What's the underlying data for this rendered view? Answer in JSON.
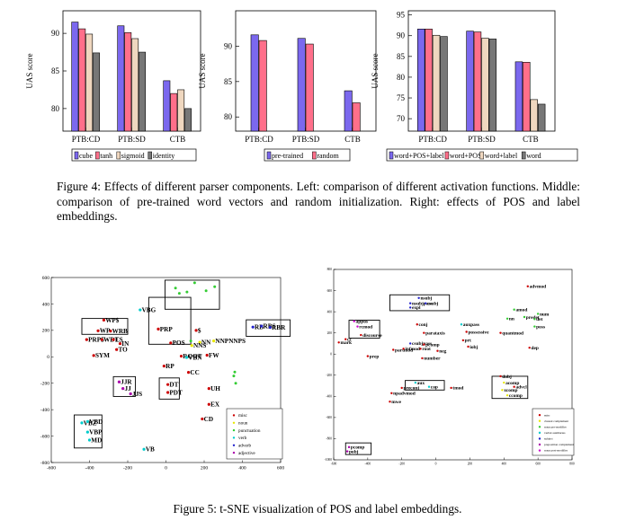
{
  "figure4": {
    "caption": "Figure 4: Effects of different parser components. Left: comparison of different activation functions. Middle: comparison of pre-trained word vectors and random initialization. Right: effects of POS and label embeddings.",
    "ylabel": "UAS score"
  },
  "figure5": {
    "caption": "Figure 5: t-SNE visualization of POS and label embeddings."
  },
  "chart_data": [
    {
      "type": "bar",
      "categories": [
        "PTB:CD",
        "PTB:SD",
        "CTB"
      ],
      "ylabel": "UAS score",
      "ylim": [
        77,
        93
      ],
      "yticks": [
        80,
        85,
        90
      ],
      "legend_placement": "bottom",
      "series": [
        {
          "name": "cube",
          "color": "#7b68ee",
          "values": [
            91.5,
            91.0,
            83.7
          ]
        },
        {
          "name": "tanh",
          "color": "#ff6f8a",
          "values": [
            90.6,
            90.1,
            82.0
          ]
        },
        {
          "name": "sigmoid",
          "color": "#efd7bf",
          "values": [
            89.9,
            89.3,
            82.5
          ]
        },
        {
          "name": "identity",
          "color": "#777777",
          "values": [
            87.4,
            87.5,
            80.0
          ]
        }
      ]
    },
    {
      "type": "bar",
      "categories": [
        "PTB:CD",
        "PTB:SD",
        "CTB"
      ],
      "ylabel": "UAS score",
      "ylim": [
        78,
        95
      ],
      "yticks": [
        80,
        85,
        90
      ],
      "legend_placement": "bottom",
      "series": [
        {
          "name": "pre-trained",
          "color": "#7b68ee",
          "values": [
            91.6,
            91.1,
            83.7
          ]
        },
        {
          "name": "random",
          "color": "#ff6f8a",
          "values": [
            90.8,
            90.3,
            82.0
          ]
        }
      ]
    },
    {
      "type": "bar",
      "categories": [
        "PTB:CD",
        "PTB:SD",
        "CTB"
      ],
      "ylabel": "UAS score",
      "ylim": [
        67,
        96
      ],
      "yticks": [
        70,
        75,
        80,
        85,
        90,
        95
      ],
      "legend_placement": "bottom",
      "series": [
        {
          "name": "word+POS+label",
          "color": "#7b68ee",
          "values": [
            91.6,
            91.1,
            83.7
          ]
        },
        {
          "name": "word+POS",
          "color": "#ff6f8a",
          "values": [
            91.6,
            90.9,
            83.6
          ]
        },
        {
          "name": "word+label",
          "color": "#efd7bf",
          "values": [
            90.1,
            89.4,
            74.6
          ]
        },
        {
          "name": "word",
          "color": "#777777",
          "values": [
            89.8,
            89.2,
            73.5
          ]
        }
      ]
    },
    {
      "type": "scatter",
      "xlim": [
        -600,
        600
      ],
      "ylim": [
        -800,
        600
      ],
      "xticks": [
        -600,
        -400,
        -200,
        0,
        200,
        400,
        600
      ],
      "yticks": [
        -800,
        -600,
        -400,
        -200,
        0,
        200,
        400,
        600
      ],
      "legend_placement": "bottom-right",
      "legend": [
        {
          "name": "misc",
          "color": "#cc0000"
        },
        {
          "name": "noun",
          "color": "#e8e800"
        },
        {
          "name": "punctuation",
          "color": "#33cc33"
        },
        {
          "name": "verb",
          "color": "#00cccc"
        },
        {
          "name": "adverb",
          "color": "#2222cc"
        },
        {
          "name": "adjective",
          "color": "#aa00aa"
        }
      ],
      "points": [
        {
          "label": "VBG",
          "x": -135,
          "y": 355,
          "color": "#00cccc"
        },
        {
          "label": "WP$",
          "x": -325,
          "y": 278,
          "color": "#cc0000"
        },
        {
          "label": "WRB",
          "x": -290,
          "y": 195,
          "color": "#cc0000"
        },
        {
          "label": "WP",
          "x": -355,
          "y": 197,
          "color": "#cc0000"
        },
        {
          "label": "PRP$",
          "x": -415,
          "y": 130,
          "color": "#cc0000"
        },
        {
          "label": "WDT",
          "x": -335,
          "y": 130,
          "color": "#cc0000"
        },
        {
          "label": "LS",
          "x": -275,
          "y": 130,
          "color": "#cc0000"
        },
        {
          "label": "IN",
          "x": -240,
          "y": 100,
          "color": "#cc0000"
        },
        {
          "label": "TO",
          "x": -258,
          "y": 55,
          "color": "#cc0000"
        },
        {
          "label": "SYM",
          "x": -378,
          "y": 10,
          "color": "#cc0000"
        },
        {
          "label": "PRP",
          "x": -40,
          "y": 210,
          "color": "#cc0000"
        },
        {
          "label": "POS",
          "x": 25,
          "y": 105,
          "color": "#cc0000"
        },
        {
          "label": "$",
          "x": 158,
          "y": 200,
          "color": "#cc0000"
        },
        {
          "label": "NN",
          "x": 177,
          "y": 110,
          "color": "#e8e800"
        },
        {
          "label": "NNS",
          "x": 135,
          "y": 85,
          "color": "#e8e800"
        },
        {
          "label": "NNPNNPS",
          "x": 250,
          "y": 120,
          "color": "#e8e800"
        },
        {
          "label": "RB",
          "x": 455,
          "y": 225,
          "color": "#2222cc"
        },
        {
          "label": "RBS",
          "x": 500,
          "y": 232,
          "color": "#2222cc"
        },
        {
          "label": "RBR",
          "x": 545,
          "y": 222,
          "color": "#2222cc"
        },
        {
          "label": "ROOT",
          "x": 80,
          "y": 5,
          "color": "#cc0000"
        },
        {
          "label": "VBN",
          "x": 108,
          "y": -5,
          "color": "#00cccc"
        },
        {
          "label": "FW",
          "x": 215,
          "y": 12,
          "color": "#cc0000"
        },
        {
          "label": "RP",
          "x": -10,
          "y": -70,
          "color": "#cc0000"
        },
        {
          "label": "CC",
          "x": 118,
          "y": -118,
          "color": "#cc0000"
        },
        {
          "label": "JJR",
          "x": -245,
          "y": -190,
          "color": "#aa00aa"
        },
        {
          "label": "JJ",
          "x": -225,
          "y": -240,
          "color": "#aa00aa"
        },
        {
          "label": "JJS",
          "x": -185,
          "y": -280,
          "color": "#aa00aa"
        },
        {
          "label": "DT",
          "x": 10,
          "y": -210,
          "color": "#cc0000"
        },
        {
          "label": "PDT",
          "x": 10,
          "y": -270,
          "color": "#cc0000"
        },
        {
          "label": "UH",
          "x": 225,
          "y": -240,
          "color": "#cc0000"
        },
        {
          "label": "EX",
          "x": 225,
          "y": -360,
          "color": "#cc0000"
        },
        {
          "label": "CD",
          "x": 190,
          "y": -470,
          "color": "#cc0000"
        },
        {
          "label": "VBZ",
          "x": -440,
          "y": -500,
          "color": "#00cccc"
        },
        {
          "label": "VBD",
          "x": -410,
          "y": -490,
          "color": "#00cccc"
        },
        {
          "label": "VBP",
          "x": -410,
          "y": -570,
          "color": "#00cccc"
        },
        {
          "label": "MD",
          "x": -400,
          "y": -630,
          "color": "#00cccc"
        },
        {
          "label": "VB",
          "x": -115,
          "y": -700,
          "color": "#00cccc"
        }
      ]
    },
    {
      "type": "scatter",
      "xlim": [
        -600,
        800
      ],
      "ylim": [
        -1000,
        800
      ],
      "xticks": [
        -600,
        -400,
        -200,
        0,
        200,
        400,
        600,
        800
      ],
      "yticks": [
        -1000,
        -800,
        -600,
        -400,
        -200,
        0,
        200,
        400,
        600,
        800
      ],
      "legend_placement": "bottom-right",
      "legend": [
        {
          "name": "misc",
          "color": "#cc0000"
        },
        {
          "name": "clausal complement",
          "color": "#e8e800"
        },
        {
          "name": "noun pre-modifier",
          "color": "#33cc33"
        },
        {
          "name": "verbal auxiliaries",
          "color": "#00cccc"
        },
        {
          "name": "subject",
          "color": "#2222cc"
        },
        {
          "name": "preposition complement",
          "color": "#aa00aa"
        },
        {
          "name": "noun post-modifier",
          "color": "#cc00cc"
        }
      ],
      "points": [
        {
          "label": "advmod",
          "x": 540,
          "y": 640,
          "color": "#cc0000"
        },
        {
          "label": "nsubj",
          "x": -100,
          "y": 530,
          "color": "#2222cc"
        },
        {
          "label": "nsubjpass",
          "x": -150,
          "y": 480,
          "color": "#2222cc"
        },
        {
          "label": "csubj",
          "x": -60,
          "y": 480,
          "color": "#2222cc"
        },
        {
          "label": "expl",
          "x": -150,
          "y": 440,
          "color": "#2222cc"
        },
        {
          "label": "amod",
          "x": 460,
          "y": 420,
          "color": "#33cc33"
        },
        {
          "label": "num",
          "x": 600,
          "y": 380,
          "color": "#33cc33"
        },
        {
          "label": "predet",
          "x": 520,
          "y": 350,
          "color": "#33cc33"
        },
        {
          "label": "det",
          "x": 580,
          "y": 330,
          "color": "#33cc33"
        },
        {
          "label": "nn",
          "x": 420,
          "y": 335,
          "color": "#33cc33"
        },
        {
          "label": "poss",
          "x": 580,
          "y": 260,
          "color": "#33cc33"
        },
        {
          "label": "appos",
          "x": -480,
          "y": 310,
          "color": "#cc00cc"
        },
        {
          "label": "rcmod",
          "x": -460,
          "y": 260,
          "color": "#cc00cc"
        },
        {
          "label": "conj",
          "x": -110,
          "y": 280,
          "color": "#cc0000"
        },
        {
          "label": "auxpass",
          "x": 150,
          "y": 280,
          "color": "#00cccc"
        },
        {
          "label": "discourse",
          "x": -440,
          "y": 180,
          "color": "#cc0000"
        },
        {
          "label": "parataxis",
          "x": -70,
          "y": 200,
          "color": "#cc0000"
        },
        {
          "label": "possessive",
          "x": 180,
          "y": 210,
          "color": "#cc0000"
        },
        {
          "label": "quantmod",
          "x": 380,
          "y": 200,
          "color": "#cc0000"
        },
        {
          "label": "cc",
          "x": -530,
          "y": 140,
          "color": "#cc0000"
        },
        {
          "label": "mark",
          "x": -570,
          "y": 110,
          "color": "#cc0000"
        },
        {
          "label": "prt",
          "x": 160,
          "y": 130,
          "color": "#cc0000"
        },
        {
          "label": "iobj",
          "x": 190,
          "y": 70,
          "color": "#cc0000"
        },
        {
          "label": "dep",
          "x": 550,
          "y": 60,
          "color": "#cc0000"
        },
        {
          "label": "csubjpass",
          "x": -150,
          "y": 100,
          "color": "#2222cc"
        },
        {
          "label": "pcomp",
          "x": -70,
          "y": 90,
          "color": "#cc0000"
        },
        {
          "label": "partmod",
          "x": -250,
          "y": 40,
          "color": "#cc0000"
        },
        {
          "label": "infmod",
          "x": -190,
          "y": 50,
          "color": "#cc0000"
        },
        {
          "label": "root",
          "x": -90,
          "y": 50,
          "color": "#cc0000"
        },
        {
          "label": "neg",
          "x": 10,
          "y": 30,
          "color": "#cc0000"
        },
        {
          "label": "prep",
          "x": -400,
          "y": -20,
          "color": "#cc0000"
        },
        {
          "label": "number",
          "x": -80,
          "y": -40,
          "color": "#cc0000"
        },
        {
          "label": "dobj",
          "x": 380,
          "y": -210,
          "color": "#cc0000"
        },
        {
          "label": "acomp",
          "x": 400,
          "y": -270,
          "color": "#e8e800"
        },
        {
          "label": "advcl",
          "x": 460,
          "y": -310,
          "color": "#cc0000"
        },
        {
          "label": "xcomp",
          "x": 390,
          "y": -340,
          "color": "#e8e800"
        },
        {
          "label": "ccomp",
          "x": 420,
          "y": -390,
          "color": "#e8e800"
        },
        {
          "label": "aux",
          "x": -120,
          "y": -270,
          "color": "#00cccc"
        },
        {
          "label": "cop",
          "x": -40,
          "y": -310,
          "color": "#00cccc"
        },
        {
          "label": "preconj",
          "x": -200,
          "y": -320,
          "color": "#cc0000"
        },
        {
          "label": "tmod",
          "x": 90,
          "y": -320,
          "color": "#cc0000"
        },
        {
          "label": "npadvmod",
          "x": -260,
          "y": -370,
          "color": "#cc0000"
        },
        {
          "label": "mwe",
          "x": -270,
          "y": -450,
          "color": "#cc0000"
        },
        {
          "label": "pcomp",
          "x": -510,
          "y": -880,
          "color": "#aa00aa"
        },
        {
          "label": "pobj",
          "x": -520,
          "y": -920,
          "color": "#aa00aa"
        }
      ]
    }
  ]
}
